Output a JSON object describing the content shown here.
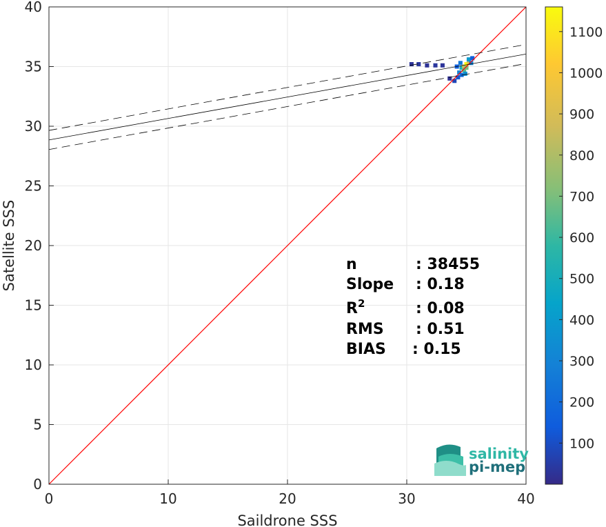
{
  "chart_data": {
    "type": "heatmap",
    "xlabel": "Saildrone SSS",
    "ylabel": "Satellite SSS",
    "xlim": [
      0,
      40
    ],
    "ylim": [
      0,
      40
    ],
    "xticks": [
      0,
      10,
      20,
      30,
      40
    ],
    "yticks": [
      0,
      5,
      10,
      15,
      20,
      25,
      30,
      35,
      40
    ],
    "grid": true,
    "colormap": "parula",
    "colorbar": {
      "range": [
        0,
        1160
      ],
      "ticks": [
        100,
        200,
        300,
        400,
        500,
        600,
        700,
        800,
        900,
        1000,
        1100
      ]
    },
    "density_cells": [
      {
        "x": 30.4,
        "y": 35.2,
        "count": 30
      },
      {
        "x": 31.0,
        "y": 35.2,
        "count": 40
      },
      {
        "x": 31.7,
        "y": 35.1,
        "count": 25
      },
      {
        "x": 32.4,
        "y": 35.1,
        "count": 35
      },
      {
        "x": 33.0,
        "y": 35.1,
        "count": 30
      },
      {
        "x": 33.6,
        "y": 34.0,
        "count": 20
      },
      {
        "x": 34.0,
        "y": 33.8,
        "count": 80
      },
      {
        "x": 34.2,
        "y": 35.0,
        "count": 150
      },
      {
        "x": 34.4,
        "y": 34.5,
        "count": 300
      },
      {
        "x": 34.5,
        "y": 35.3,
        "count": 250
      },
      {
        "x": 34.6,
        "y": 34.9,
        "count": 500
      },
      {
        "x": 34.6,
        "y": 34.3,
        "count": 200
      },
      {
        "x": 34.8,
        "y": 35.0,
        "count": 850
      },
      {
        "x": 34.8,
        "y": 34.7,
        "count": 650
      },
      {
        "x": 35.0,
        "y": 35.2,
        "count": 1150
      },
      {
        "x": 35.0,
        "y": 34.9,
        "count": 700
      },
      {
        "x": 35.2,
        "y": 35.4,
        "count": 900
      },
      {
        "x": 35.2,
        "y": 35.6,
        "count": 400
      },
      {
        "x": 35.4,
        "y": 35.3,
        "count": 300
      },
      {
        "x": 35.5,
        "y": 35.7,
        "count": 150
      },
      {
        "x": 34.3,
        "y": 34.1,
        "count": 120
      },
      {
        "x": 34.9,
        "y": 34.4,
        "count": 350
      }
    ],
    "regression": {
      "intercept": 28.85,
      "slope": 0.18,
      "band": 0.8
    },
    "identity_line": true,
    "stats": [
      {
        "label": "n",
        "value": ": 38455"
      },
      {
        "label": "Slope",
        "value": ": 0.18"
      },
      {
        "label": "R",
        "sup": "2",
        "value": ": 0.08"
      },
      {
        "label": "RMS",
        "value": ": 0.51"
      },
      {
        "label": "BIAS",
        "value": ": 0.15"
      }
    ]
  },
  "logo": {
    "line1": "salinity",
    "line2": "pi-mep"
  },
  "colors": {
    "identity": "#ff0000",
    "regression": "#000000",
    "grid": "#e6e6e6",
    "axis": "#262626"
  }
}
